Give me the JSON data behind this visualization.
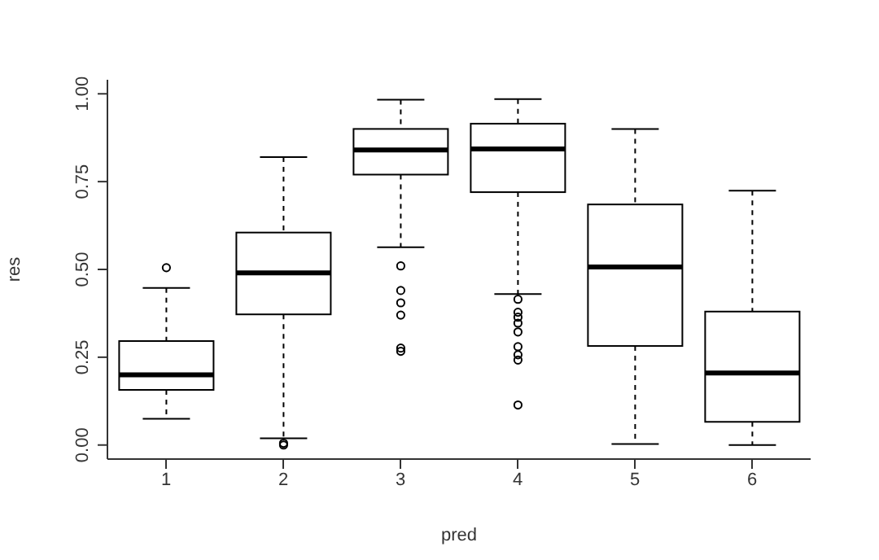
{
  "chart_data": {
    "type": "box",
    "xlabel": "pred",
    "ylabel": "res",
    "categories": [
      "1",
      "2",
      "3",
      "4",
      "5",
      "6"
    ],
    "color": "#000000",
    "boxes": [
      {
        "low": 0.075,
        "q1": 0.157,
        "median": 0.2,
        "q3": 0.296,
        "high": 0.447,
        "outliers": [
          0.505
        ]
      },
      {
        "low": 0.019,
        "q1": 0.372,
        "median": 0.49,
        "q3": 0.605,
        "high": 0.82,
        "outliers": [
          0.005,
          0.0
        ]
      },
      {
        "low": 0.563,
        "q1": 0.77,
        "median": 0.84,
        "q3": 0.9,
        "high": 0.983,
        "outliers": [
          0.51,
          0.44,
          0.405,
          0.37,
          0.276,
          0.267
        ]
      },
      {
        "low": 0.43,
        "q1": 0.72,
        "median": 0.843,
        "q3": 0.915,
        "high": 0.985,
        "outliers": [
          0.415,
          0.378,
          0.364,
          0.347,
          0.322,
          0.28,
          0.257,
          0.242,
          0.114
        ]
      },
      {
        "low": 0.003,
        "q1": 0.282,
        "median": 0.507,
        "q3": 0.685,
        "high": 0.9
      },
      {
        "low": 0.0,
        "q1": 0.066,
        "median": 0.205,
        "q3": 0.38,
        "high": 0.724
      }
    ],
    "ylim": [
      -0.04,
      1.04
    ],
    "yticks": [
      {
        "value": 0,
        "label": "0.00"
      },
      {
        "value": 0.25,
        "label": "0.25"
      },
      {
        "value": 0.5,
        "label": "0.50"
      },
      {
        "value": 0.75,
        "label": "0.75"
      },
      {
        "value": 1,
        "label": "1.00"
      }
    ]
  }
}
